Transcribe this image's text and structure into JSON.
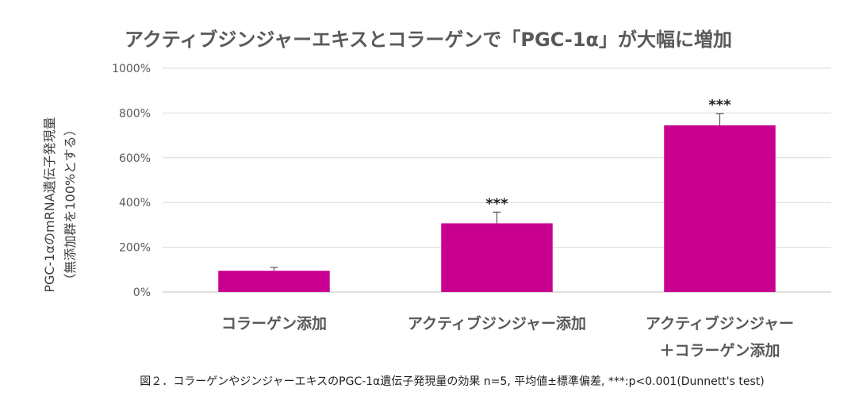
{
  "chart_data": {
    "type": "bar",
    "title": "アクティブジンジャーエキスとコラーゲンで「PGC-1α」が大幅に増加",
    "ylabel": "PGC-1αのmRNA遺伝子発現量",
    "ylabel_sub": "（無添加群を100%とする）",
    "categories": [
      [
        "コラーゲン添加"
      ],
      [
        "アクティブジンジャー添加"
      ],
      [
        "アクティブジンジャー",
        "＋コラーゲン添加"
      ]
    ],
    "values": [
      95,
      307,
      745
    ],
    "errors": [
      15,
      50,
      52
    ],
    "significance": [
      "",
      "***",
      "***"
    ],
    "yticks": [
      "0%",
      "200%",
      "400%",
      "600%",
      "800%",
      "1000%"
    ],
    "ylim": [
      0,
      1000
    ],
    "grid": true,
    "bar_color": "#c9008f"
  },
  "caption": "図２．コラーゲンやジンジャーエキスのPGC-1α遺伝子発現量の効果 n=5, 平均値±標準偏差, ***:p<0.001(Dunnett's test)"
}
